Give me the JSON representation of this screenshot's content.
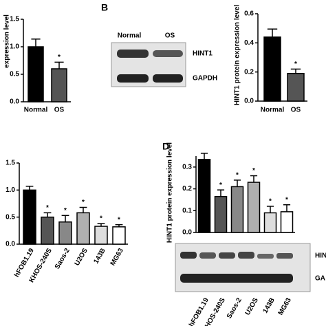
{
  "chart_data": [
    {
      "type": "bar",
      "y_label": "expression level",
      "categories": [
        "Normal",
        "OS"
      ],
      "values": [
        1.0,
        0.6
      ],
      "errors": [
        0.14,
        0.12
      ],
      "colors": [
        "#000000",
        "#555555"
      ],
      "markers": [
        null,
        "*"
      ],
      "ylim": [
        0,
        1.5
      ],
      "yticks": [
        {
          "value": 0,
          "label": "0.0"
        },
        0.5,
        {
          "value": 1,
          "label": "1.0"
        },
        1.5
      ]
    },
    {
      "type": "bar",
      "panel": "B",
      "y_label": "HINT1 protein expression level",
      "categories": [
        "Normal",
        "OS"
      ],
      "values": [
        0.44,
        0.19
      ],
      "errors": [
        0.055,
        0.03
      ],
      "colors": [
        "#000000",
        "#555555"
      ],
      "markers": [
        null,
        "*"
      ],
      "ylim": [
        0,
        0.6
      ],
      "yticks": [
        {
          "value": 0,
          "label": "0.0"
        },
        0.2,
        0.4,
        0.6
      ],
      "blot": {
        "lanes": [
          "Normal",
          "OS"
        ],
        "bands": [
          "HINT1",
          "GAPDH"
        ]
      }
    },
    {
      "type": "bar",
      "categories": [
        "hFOB1.19",
        "KHOS-240S",
        "Saos-2",
        "U2OS",
        "143B",
        "MG63"
      ],
      "values": [
        1.0,
        0.5,
        0.41,
        0.58,
        0.33,
        0.32
      ],
      "errors": [
        0.07,
        0.08,
        0.12,
        0.1,
        0.05,
        0.04
      ],
      "colors": [
        "#000000",
        "#555555",
        "#888888",
        "#b0b0b0",
        "#dddddd",
        "#ffffff"
      ],
      "markers": [
        null,
        "*",
        "*",
        "*",
        "*",
        "*"
      ],
      "ylim": [
        0,
        1.5
      ],
      "yticks": [
        {
          "value": 0,
          "label": "0.0"
        },
        0.5,
        {
          "value": 1,
          "label": "1.0"
        },
        1.5
      ]
    },
    {
      "type": "bar",
      "panel": "D",
      "y_label": "HINT1 protein expression level",
      "categories": [
        "hFOB1.19",
        "KHOS-240S",
        "Saos-2",
        "U2OS",
        "143B",
        "MG63"
      ],
      "values": [
        0.335,
        0.165,
        0.21,
        0.23,
        0.09,
        0.095
      ],
      "errors": [
        0.028,
        0.03,
        0.03,
        0.03,
        0.03,
        0.032
      ],
      "colors": [
        "#000000",
        "#555555",
        "#888888",
        "#b0b0b0",
        "#dddddd",
        "#ffffff"
      ],
      "markers": [
        null,
        "*",
        "*",
        "*",
        "*",
        "*"
      ],
      "ylim": [
        0,
        0.35
      ],
      "yticks": [
        {
          "value": 0,
          "label": "0.0"
        },
        0.1,
        0.2,
        0.3
      ],
      "blot": {
        "bands": [
          "HIN",
          "GA"
        ]
      }
    }
  ]
}
